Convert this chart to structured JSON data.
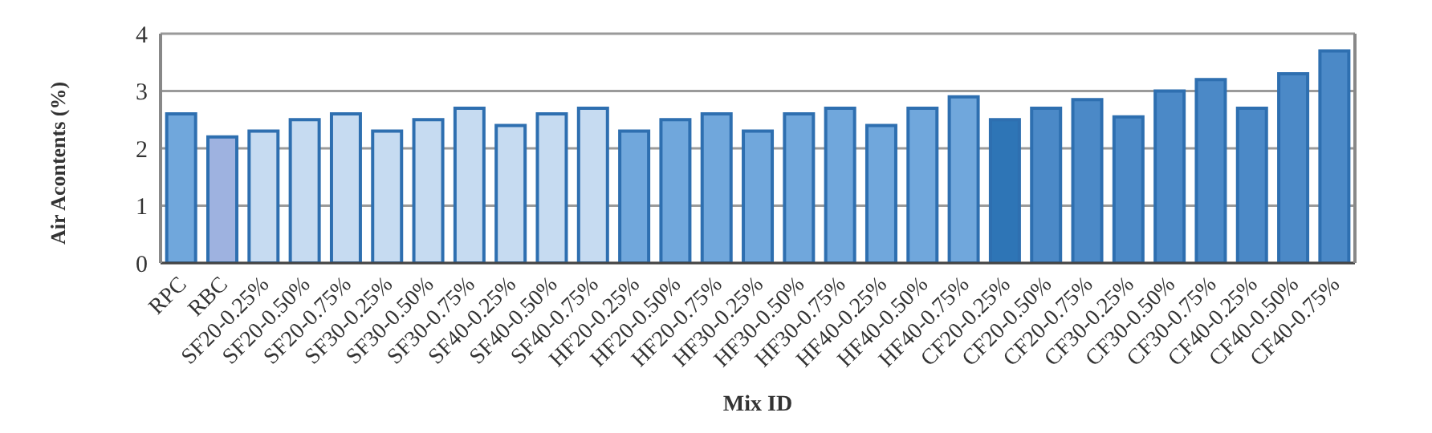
{
  "chart_data": {
    "type": "bar",
    "xlabel": "Mix ID",
    "ylabel": "Air Acontents  (%)",
    "categories": [
      "RPC",
      "RBC",
      "SF20-0.25%",
      "SF20-0.50%",
      "SF20-0.75%",
      "SF30-0.25%",
      "SF30-0.50%",
      "SF30-0.75%",
      "SF40-0.25%",
      "SF40-0.50%",
      "SF40-0.75%",
      "HF20-0.25%",
      "HF20-0.50%",
      "HF20-0.75%",
      "HF30-0.25%",
      "HF30-0.50%",
      "HF30-0.75%",
      "HF40-0.25%",
      "HF40-0.50%",
      "HF40-0.75%",
      "CF20-0.25%",
      "CF20-0.50%",
      "CF20-0.75%",
      "CF30-0.25%",
      "CF30-0.50%",
      "CF30-0.75%",
      "CF40-0.25%",
      "CF40-0.50%",
      "CF40-0.75%"
    ],
    "values": [
      2.6,
      2.2,
      2.3,
      2.5,
      2.6,
      2.3,
      2.5,
      2.7,
      2.4,
      2.6,
      2.7,
      2.3,
      2.5,
      2.6,
      2.3,
      2.6,
      2.7,
      2.4,
      2.7,
      2.9,
      2.5,
      2.7,
      2.85,
      2.55,
      3.0,
      3.2,
      2.7,
      3.3,
      3.7
    ],
    "colors": [
      "#70a7dc",
      "#9eb2e0",
      "#c6dbf1",
      "#c6dbf1",
      "#c6dbf1",
      "#c6dbf1",
      "#c6dbf1",
      "#c6dbf1",
      "#c6dbf1",
      "#c6dbf1",
      "#c6dbf1",
      "#70a7dc",
      "#70a7dc",
      "#70a7dc",
      "#70a7dc",
      "#70a7dc",
      "#70a7dc",
      "#70a7dc",
      "#70a7dc",
      "#70a7dc",
      "#2e75b6",
      "#4b89c7",
      "#4b89c7",
      "#4b89c7",
      "#4b89c7",
      "#4b89c7",
      "#4b89c7",
      "#4b89c7",
      "#4b89c7"
    ],
    "ylim": [
      0,
      4
    ],
    "yticks": [
      0,
      1,
      2,
      3,
      4
    ],
    "grid": "y",
    "legend": false
  }
}
